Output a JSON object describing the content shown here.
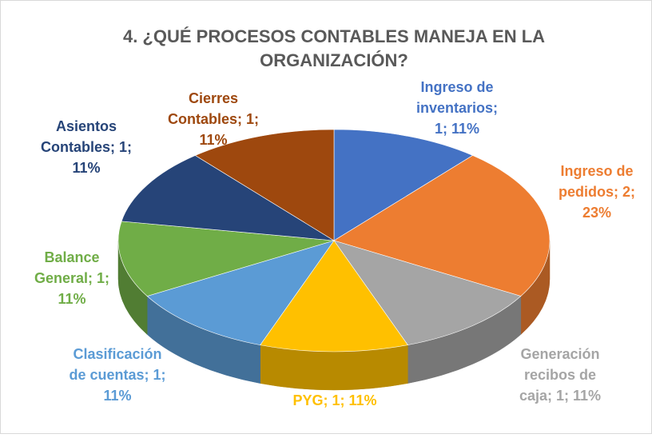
{
  "chart_data": {
    "type": "pie",
    "title": "4. ¿QUÉ PROCESOS CONTABLES MANEJA EN LA ORGANIZACIÓN?",
    "values": [
      1,
      2,
      1,
      1,
      1,
      1,
      1,
      1
    ],
    "value_labels": [
      "Ingreso de inventarios; 1; 11%",
      "Ingreso de pedidos; 2; 23%",
      "Generación recibos de caja; 1; 11%",
      "PYG; 1; 11%",
      "Clasificación de cuentas; 1; 11%",
      "Balance General; 1; 11%",
      "Asientos Contables; 1; 11%",
      "Cierres Contables; 1; 11%"
    ],
    "colors": [
      "#4472c4",
      "#ed7d31",
      "#a5a5a5",
      "#ffc000",
      "#5b9bd5",
      "#70ad47",
      "#264478",
      "#9e480e"
    ]
  }
}
